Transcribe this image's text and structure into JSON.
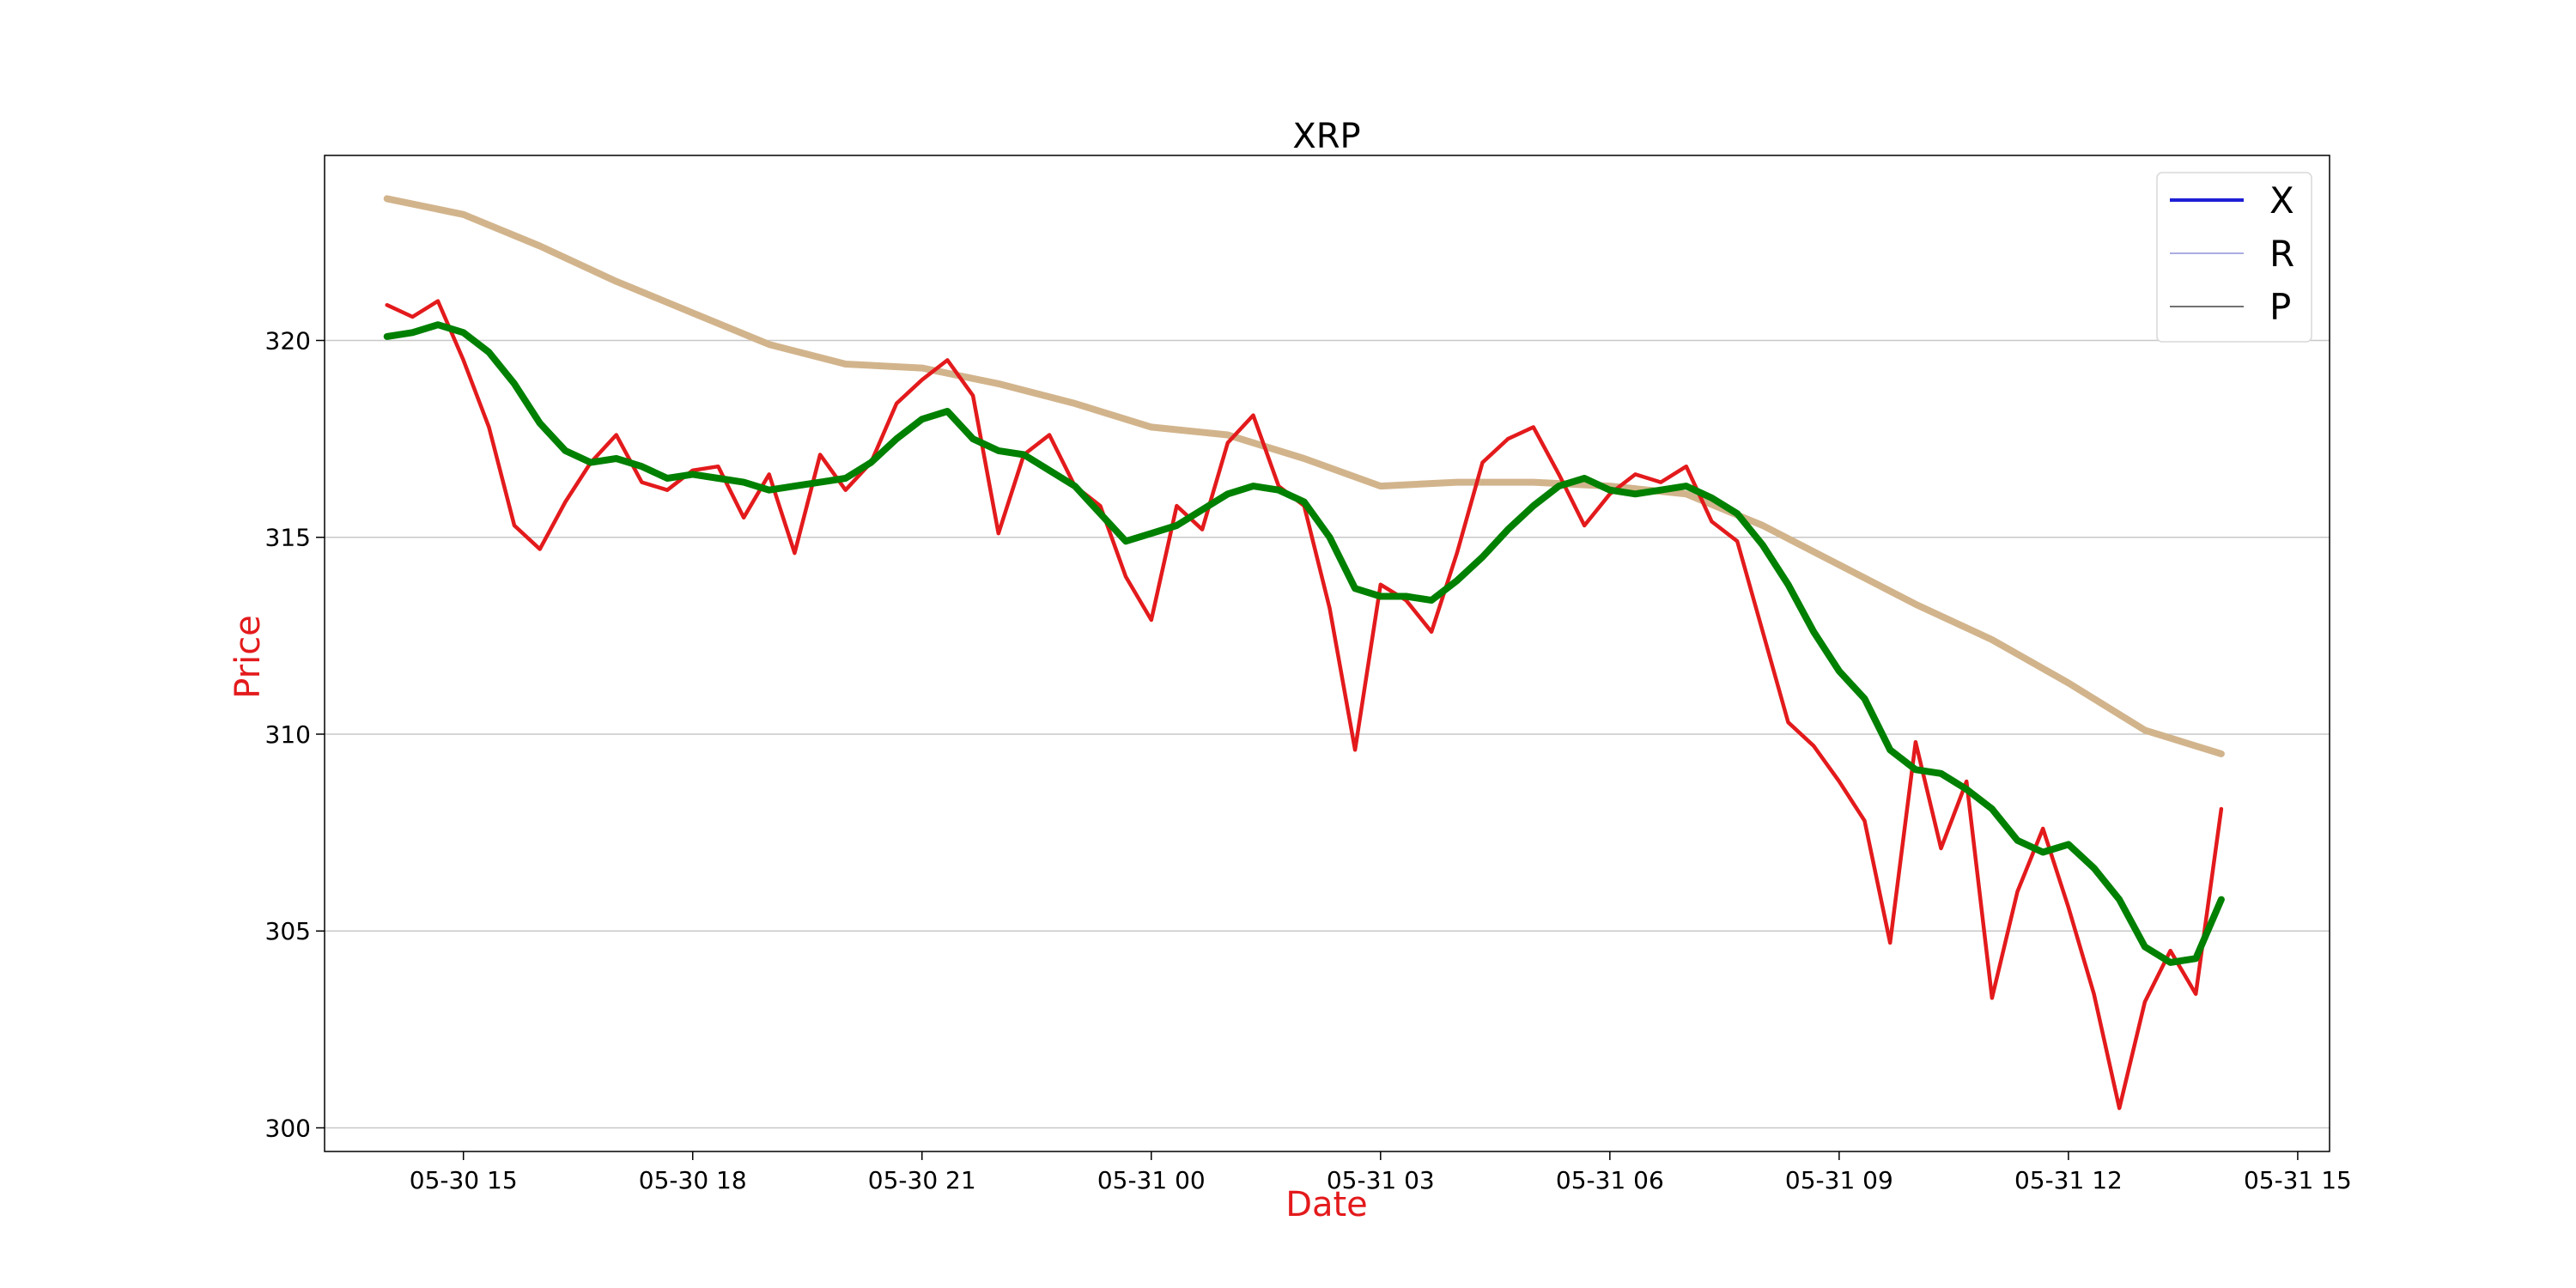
{
  "chart_data": {
    "type": "line",
    "title": "XRP",
    "xlabel": "Date",
    "ylabel": "Price",
    "label_color": "#e31a1c",
    "x_ticks": [
      "05-30 15",
      "05-30 18",
      "05-30 21",
      "05-31 00",
      "05-31 03",
      "05-31 06",
      "05-31 09",
      "05-31 12",
      "05-31 15"
    ],
    "x_range": [
      "05-30 13:11",
      "05-31 15:25"
    ],
    "ylim": [
      299.4,
      324.7
    ],
    "yticks": [
      300,
      305,
      310,
      315,
      320
    ],
    "grid": "horizontal",
    "legend": {
      "placement": "top-right",
      "entries": [
        {
          "label": "X",
          "color": "#1f1fd6"
        },
        {
          "label": "R",
          "color": "#9090d8"
        },
        {
          "label": "P",
          "color": "#444444"
        }
      ]
    },
    "series": [
      {
        "color": "#e31a1c",
        "x": [
          "05-30 14:00",
          "05-30 14:20",
          "05-30 14:40",
          "05-30 15:00",
          "05-30 15:20",
          "05-30 15:40",
          "05-30 16:00",
          "05-30 16:20",
          "05-30 16:40",
          "05-30 17:00",
          "05-30 17:20",
          "05-30 17:40",
          "05-30 18:00",
          "05-30 18:20",
          "05-30 18:40",
          "05-30 19:00",
          "05-30 19:20",
          "05-30 19:40",
          "05-30 20:00",
          "05-30 20:20",
          "05-30 20:40",
          "05-30 21:00",
          "05-30 21:20",
          "05-30 21:40",
          "05-30 22:00",
          "05-30 22:20",
          "05-30 22:40",
          "05-30 23:00",
          "05-30 23:20",
          "05-30 23:40",
          "05-31 00:00",
          "05-31 00:20",
          "05-31 00:40",
          "05-31 01:00",
          "05-31 01:20",
          "05-31 01:40",
          "05-31 02:00",
          "05-31 02:20",
          "05-31 02:40",
          "05-31 03:00",
          "05-31 03:20",
          "05-31 03:40",
          "05-31 04:00",
          "05-31 04:20",
          "05-31 04:40",
          "05-31 05:00",
          "05-31 05:20",
          "05-31 05:40",
          "05-31 06:00",
          "05-31 06:20",
          "05-31 06:40",
          "05-31 07:00",
          "05-31 07:20",
          "05-31 07:40",
          "05-31 08:00",
          "05-31 08:20",
          "05-31 08:40",
          "05-31 09:00",
          "05-31 09:20",
          "05-31 09:40",
          "05-31 10:00",
          "05-31 10:20",
          "05-31 10:40",
          "05-31 11:00",
          "05-31 11:20",
          "05-31 11:40",
          "05-31 12:00",
          "05-31 12:20",
          "05-31 12:40",
          "05-31 13:00",
          "05-31 13:20",
          "05-31 13:40",
          "05-31 14:00"
        ],
        "values": [
          320.9,
          320.6,
          321.0,
          319.5,
          317.8,
          315.3,
          314.7,
          315.9,
          316.9,
          317.6,
          316.4,
          316.2,
          316.7,
          316.8,
          315.5,
          316.6,
          314.6,
          317.1,
          316.2,
          316.9,
          318.4,
          319.0,
          319.5,
          318.6,
          315.1,
          317.1,
          317.6,
          316.3,
          315.8,
          314.0,
          312.9,
          315.8,
          315.2,
          317.4,
          318.1,
          316.3,
          315.8,
          313.2,
          309.6,
          313.8,
          313.4,
          312.6,
          314.6,
          316.9,
          317.5,
          317.8,
          316.6,
          315.3,
          316.1,
          316.6,
          316.4,
          316.8,
          315.4,
          314.9,
          312.6,
          310.3,
          309.7,
          308.8,
          307.8,
          304.7,
          309.8,
          307.1,
          308.8,
          303.3,
          306.0,
          307.6,
          305.6,
          303.4,
          300.5,
          303.2,
          304.5,
          303.4,
          308.1
        ]
      },
      {
        "color": "#008000",
        "x": [
          "05-30 14:00",
          "05-30 14:20",
          "05-30 14:40",
          "05-30 15:00",
          "05-30 15:20",
          "05-30 15:40",
          "05-30 16:00",
          "05-30 16:20",
          "05-30 16:40",
          "05-30 17:00",
          "05-30 17:20",
          "05-30 17:40",
          "05-30 18:00",
          "05-30 18:20",
          "05-30 18:40",
          "05-30 19:00",
          "05-30 19:20",
          "05-30 19:40",
          "05-30 20:00",
          "05-30 20:20",
          "05-30 20:40",
          "05-30 21:00",
          "05-30 21:20",
          "05-30 21:40",
          "05-30 22:00",
          "05-30 22:20",
          "05-30 22:40",
          "05-30 23:00",
          "05-30 23:20",
          "05-30 23:40",
          "05-31 00:00",
          "05-31 00:20",
          "05-31 00:40",
          "05-31 01:00",
          "05-31 01:20",
          "05-31 01:40",
          "05-31 02:00",
          "05-31 02:20",
          "05-31 02:40",
          "05-31 03:00",
          "05-31 03:20",
          "05-31 03:40",
          "05-31 04:00",
          "05-31 04:20",
          "05-31 04:40",
          "05-31 05:00",
          "05-31 05:20",
          "05-31 05:40",
          "05-31 06:00",
          "05-31 06:20",
          "05-31 06:40",
          "05-31 07:00",
          "05-31 07:20",
          "05-31 07:40",
          "05-31 08:00",
          "05-31 08:20",
          "05-31 08:40",
          "05-31 09:00",
          "05-31 09:20",
          "05-31 09:40",
          "05-31 10:00",
          "05-31 10:20",
          "05-31 10:40",
          "05-31 11:00",
          "05-31 11:20",
          "05-31 11:40",
          "05-31 12:00",
          "05-31 12:20",
          "05-31 12:40",
          "05-31 13:00",
          "05-31 13:20",
          "05-31 13:40",
          "05-31 14:00"
        ],
        "values": [
          320.1,
          320.2,
          320.4,
          320.2,
          319.7,
          318.9,
          317.9,
          317.2,
          316.9,
          317.0,
          316.8,
          316.5,
          316.6,
          316.5,
          316.4,
          316.2,
          316.3,
          316.4,
          316.5,
          316.9,
          317.5,
          318.0,
          318.2,
          317.5,
          317.2,
          317.1,
          316.7,
          316.3,
          315.6,
          314.9,
          315.1,
          315.3,
          315.7,
          316.1,
          316.3,
          316.2,
          315.9,
          315.0,
          313.7,
          313.5,
          313.5,
          313.4,
          313.9,
          314.5,
          315.2,
          315.8,
          316.3,
          316.5,
          316.2,
          316.1,
          316.2,
          316.3,
          316.0,
          315.6,
          314.8,
          313.8,
          312.6,
          311.6,
          310.9,
          309.6,
          309.1,
          309.0,
          308.6,
          308.1,
          307.3,
          307.0,
          307.2,
          306.6,
          305.8,
          304.6,
          304.2,
          304.3,
          305.8
        ]
      },
      {
        "color": "#d2b48c",
        "x": [
          "05-30 14:00",
          "05-30 15:00",
          "05-30 16:00",
          "05-30 17:00",
          "05-30 18:00",
          "05-30 19:00",
          "05-30 20:00",
          "05-30 21:00",
          "05-30 22:00",
          "05-30 23:00",
          "05-31 00:00",
          "05-31 01:00",
          "05-31 02:00",
          "05-31 03:00",
          "05-31 04:00",
          "05-31 05:00",
          "05-31 06:00",
          "05-31 07:00",
          "05-31 08:00",
          "05-31 09:00",
          "05-31 10:00",
          "05-31 11:00",
          "05-31 12:00",
          "05-31 13:00",
          "05-31 14:00"
        ],
        "values": [
          323.6,
          323.2,
          322.4,
          321.5,
          320.7,
          319.9,
          319.4,
          319.3,
          318.9,
          318.4,
          317.8,
          317.6,
          317.0,
          316.3,
          316.4,
          316.4,
          316.3,
          316.1,
          315.3,
          314.3,
          313.3,
          312.4,
          311.3,
          310.1,
          309.5
        ]
      }
    ]
  }
}
